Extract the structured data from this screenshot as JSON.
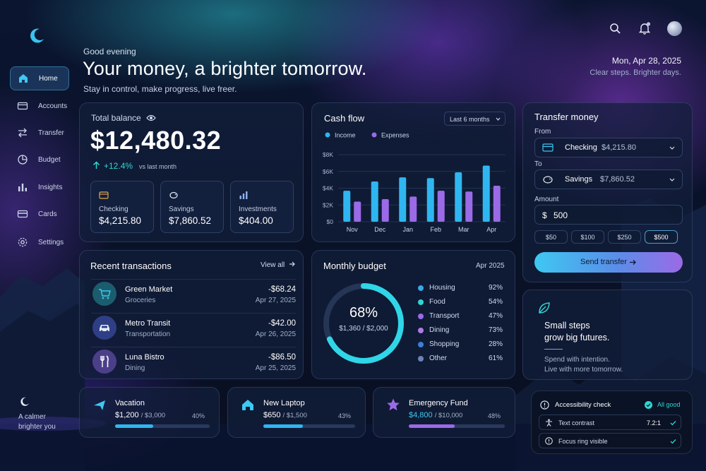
{
  "sidebar": {
    "items": [
      {
        "label": "Home",
        "icon": "home-icon",
        "active": true
      },
      {
        "label": "Accounts",
        "icon": "wallet-icon"
      },
      {
        "label": "Transfer",
        "icon": "transfer-icon"
      },
      {
        "label": "Budget",
        "icon": "pie-icon"
      },
      {
        "label": "Insights",
        "icon": "bars-icon"
      },
      {
        "label": "Cards",
        "icon": "card-icon"
      },
      {
        "label": "Settings",
        "icon": "gear-icon"
      }
    ],
    "footer_line1": "A calmer",
    "footer_line2": "brighter you"
  },
  "header": {
    "greeting": "Good evening",
    "headline": "Your money, a brighter tomorrow.",
    "subline": "Stay in control, make progress, live freer.",
    "date": "Mon, Apr 28, 2025",
    "tagline": "Clear steps. Brighter days."
  },
  "balance": {
    "label": "Total balance",
    "amount": "$12,480.32",
    "change": "+12.4%",
    "change_note": "vs last month",
    "accounts": [
      {
        "name": "Checking",
        "value": "$4,215.80"
      },
      {
        "name": "Savings",
        "value": "$7,860.52"
      },
      {
        "name": "Investments",
        "value": "$404.00"
      }
    ]
  },
  "cashflow": {
    "title": "Cash flow",
    "range": "Last 6 months"
  },
  "chart_data": {
    "type": "bar",
    "categories": [
      "Nov",
      "Dec",
      "Jan",
      "Feb",
      "Mar",
      "Apr"
    ],
    "series": [
      {
        "name": "Income",
        "values": [
          3700,
          4800,
          5300,
          5200,
          5900,
          6700
        ],
        "color": "#2fb6f0"
      },
      {
        "name": "Expenses",
        "values": [
          2400,
          2700,
          3000,
          3700,
          3600,
          4300
        ],
        "color": "#9b6ae6"
      }
    ],
    "yticks": [
      "$0",
      "$2K",
      "$4K",
      "$6K",
      "$8K"
    ],
    "ylim": [
      0,
      8000
    ],
    "grid": true,
    "legend_position": "top-left"
  },
  "transactions": {
    "title": "Recent transactions",
    "view_all": "View all",
    "items": [
      {
        "name": "Green Market",
        "category": "Groceries",
        "amount": "-$68.24",
        "date": "Apr 27, 2025",
        "icon": "cart-icon",
        "color": "#1b5d6e"
      },
      {
        "name": "Metro Transit",
        "category": "Transportation",
        "amount": "-$42.00",
        "date": "Apr 26, 2025",
        "icon": "car-icon",
        "color": "#2f3f86"
      },
      {
        "name": "Luna Bistro",
        "category": "Dining",
        "amount": "-$86.50",
        "date": "Apr 25, 2025",
        "icon": "utensils-icon",
        "color": "#4c3f8a"
      }
    ]
  },
  "budget": {
    "title": "Monthly budget",
    "month": "Apr 2025",
    "percent": "68%",
    "percent_value": 0.68,
    "spent": "$1,360 / $2,000",
    "categories": [
      {
        "name": "Housing",
        "pct": "92%",
        "color": "#3aa7e8"
      },
      {
        "name": "Food",
        "pct": "54%",
        "color": "#2fd6d2"
      },
      {
        "name": "Transport",
        "pct": "47%",
        "color": "#9a6ae8"
      },
      {
        "name": "Dining",
        "pct": "73%",
        "color": "#b07ae8"
      },
      {
        "name": "Shopping",
        "pct": "28%",
        "color": "#3a7fd8"
      },
      {
        "name": "Other",
        "pct": "61%",
        "color": "#6b83b8"
      }
    ]
  },
  "transfer": {
    "title": "Transfer money",
    "from_label": "From",
    "from_account": "Checking",
    "from_balance": "$4,215.80",
    "to_label": "To",
    "to_account": "Savings",
    "to_balance": "$7,860.52",
    "amount_label": "Amount",
    "currency": "$",
    "amount": "500",
    "chips": [
      "$50",
      "$100",
      "$250",
      "$500"
    ],
    "send": "Send transfer"
  },
  "quote": {
    "line1": "Small steps",
    "line2": "grow big futures.",
    "note1": "Spend with intention.",
    "note2": "Live with more tomorrow."
  },
  "goals": [
    {
      "name": "Vacation",
      "amount": "$1,200",
      "target": "/ $3,000",
      "pct": "40%",
      "value": 0.4,
      "color": "#2fb6f0"
    },
    {
      "name": "New Laptop",
      "amount": "$650",
      "target": "/ $1,500",
      "pct": "43%",
      "value": 0.43,
      "color": "#2fb6f0"
    },
    {
      "name": "Emergency Fund",
      "amount": "$4,800",
      "target": "/ $10,000",
      "pct": "48%",
      "value": 0.48,
      "color": "#9b6ae6"
    }
  ],
  "accessibility": {
    "title": "Accessibility check",
    "status": "All good",
    "rows": [
      {
        "label": "Text contrast",
        "value": "7.2:1"
      },
      {
        "label": "Focus ring visible",
        "value": ""
      }
    ]
  }
}
